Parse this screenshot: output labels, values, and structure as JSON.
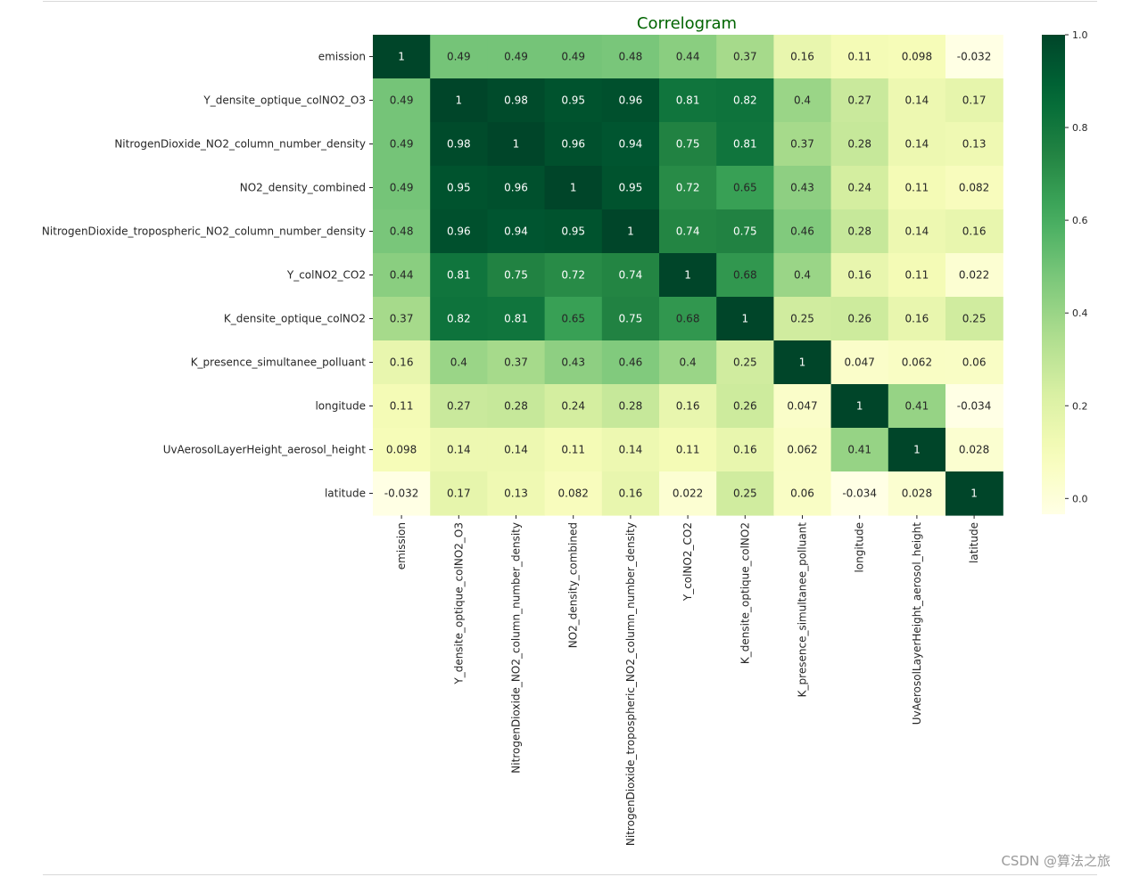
{
  "chart_data": {
    "type": "heatmap",
    "title": "Correlogram",
    "title_color": "#006400",
    "colormap": "YlGn",
    "vmin": -0.034,
    "vmax": 1.0,
    "variables": [
      "emission",
      "Y_densite_optique_colNO2_O3",
      "NitrogenDioxide_NO2_column_number_density",
      "NO2_density_combined",
      "NitrogenDioxide_tropospheric_NO2_column_number_density",
      "Y_colNO2_CO2",
      "K_densite_optique_colNO2",
      "K_presence_simultanee_polluant",
      "longitude",
      "UvAerosolLayerHeight_aerosol_height",
      "latitude"
    ],
    "values": [
      [
        1,
        0.49,
        0.49,
        0.49,
        0.48,
        0.44,
        0.37,
        0.16,
        0.11,
        0.098,
        -0.032
      ],
      [
        0.49,
        1,
        0.98,
        0.95,
        0.96,
        0.81,
        0.82,
        0.4,
        0.27,
        0.14,
        0.17
      ],
      [
        0.49,
        0.98,
        1,
        0.96,
        0.94,
        0.75,
        0.81,
        0.37,
        0.28,
        0.14,
        0.13
      ],
      [
        0.49,
        0.95,
        0.96,
        1,
        0.95,
        0.72,
        0.65,
        0.43,
        0.24,
        0.11,
        0.082
      ],
      [
        0.48,
        0.96,
        0.94,
        0.95,
        1,
        0.74,
        0.75,
        0.46,
        0.28,
        0.14,
        0.16
      ],
      [
        0.44,
        0.81,
        0.75,
        0.72,
        0.74,
        1,
        0.68,
        0.4,
        0.16,
        0.11,
        0.022
      ],
      [
        0.37,
        0.82,
        0.81,
        0.65,
        0.75,
        0.68,
        1,
        0.25,
        0.26,
        0.16,
        0.25
      ],
      [
        0.16,
        0.4,
        0.37,
        0.43,
        0.46,
        0.4,
        0.25,
        1,
        0.047,
        0.062,
        0.06
      ],
      [
        0.11,
        0.27,
        0.28,
        0.24,
        0.28,
        0.16,
        0.26,
        0.047,
        1,
        0.41,
        -0.034
      ],
      [
        0.098,
        0.14,
        0.14,
        0.11,
        0.14,
        0.11,
        0.16,
        0.062,
        0.41,
        1,
        0.028
      ],
      [
        -0.032,
        0.17,
        0.13,
        0.082,
        0.16,
        0.022,
        0.25,
        0.06,
        -0.034,
        0.028,
        1
      ]
    ],
    "colorbar": {
      "ticks": [
        0.0,
        0.2,
        0.4,
        0.6,
        0.8,
        1.0
      ],
      "tick_labels": [
        "0.0",
        "0.2",
        "0.4",
        "0.6",
        "0.8",
        "1.0"
      ]
    }
  },
  "watermark": "CSDN @算法之旅"
}
